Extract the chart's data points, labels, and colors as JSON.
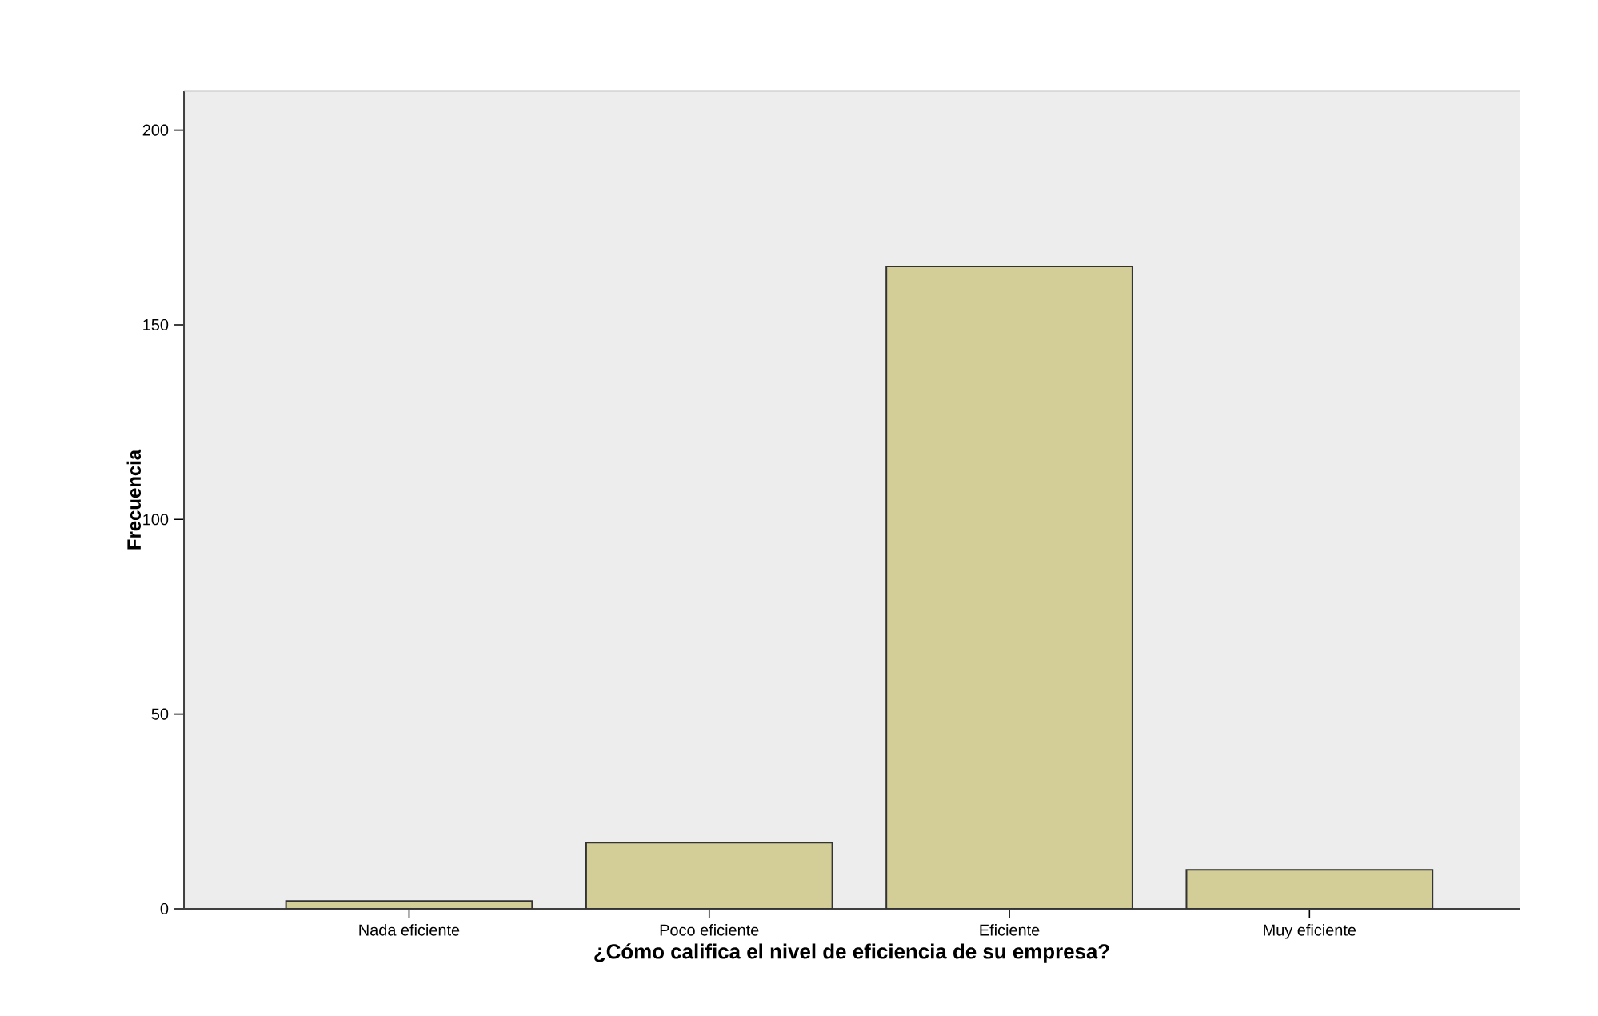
{
  "chart_data": {
    "type": "bar",
    "xlabel": "¿Cómo califica el nivel de eficiencia de su empresa?",
    "ylabel": "Frecuencia",
    "categories": [
      "Nada eficiente",
      "Poco eficiente",
      "Eficiente",
      "Muy eficiente"
    ],
    "values": [
      2,
      17,
      165,
      10
    ],
    "color": "#d3ce97",
    "ylim": [
      0,
      210
    ],
    "yticks": [
      0,
      50,
      100,
      150,
      200
    ],
    "grid": false
  }
}
